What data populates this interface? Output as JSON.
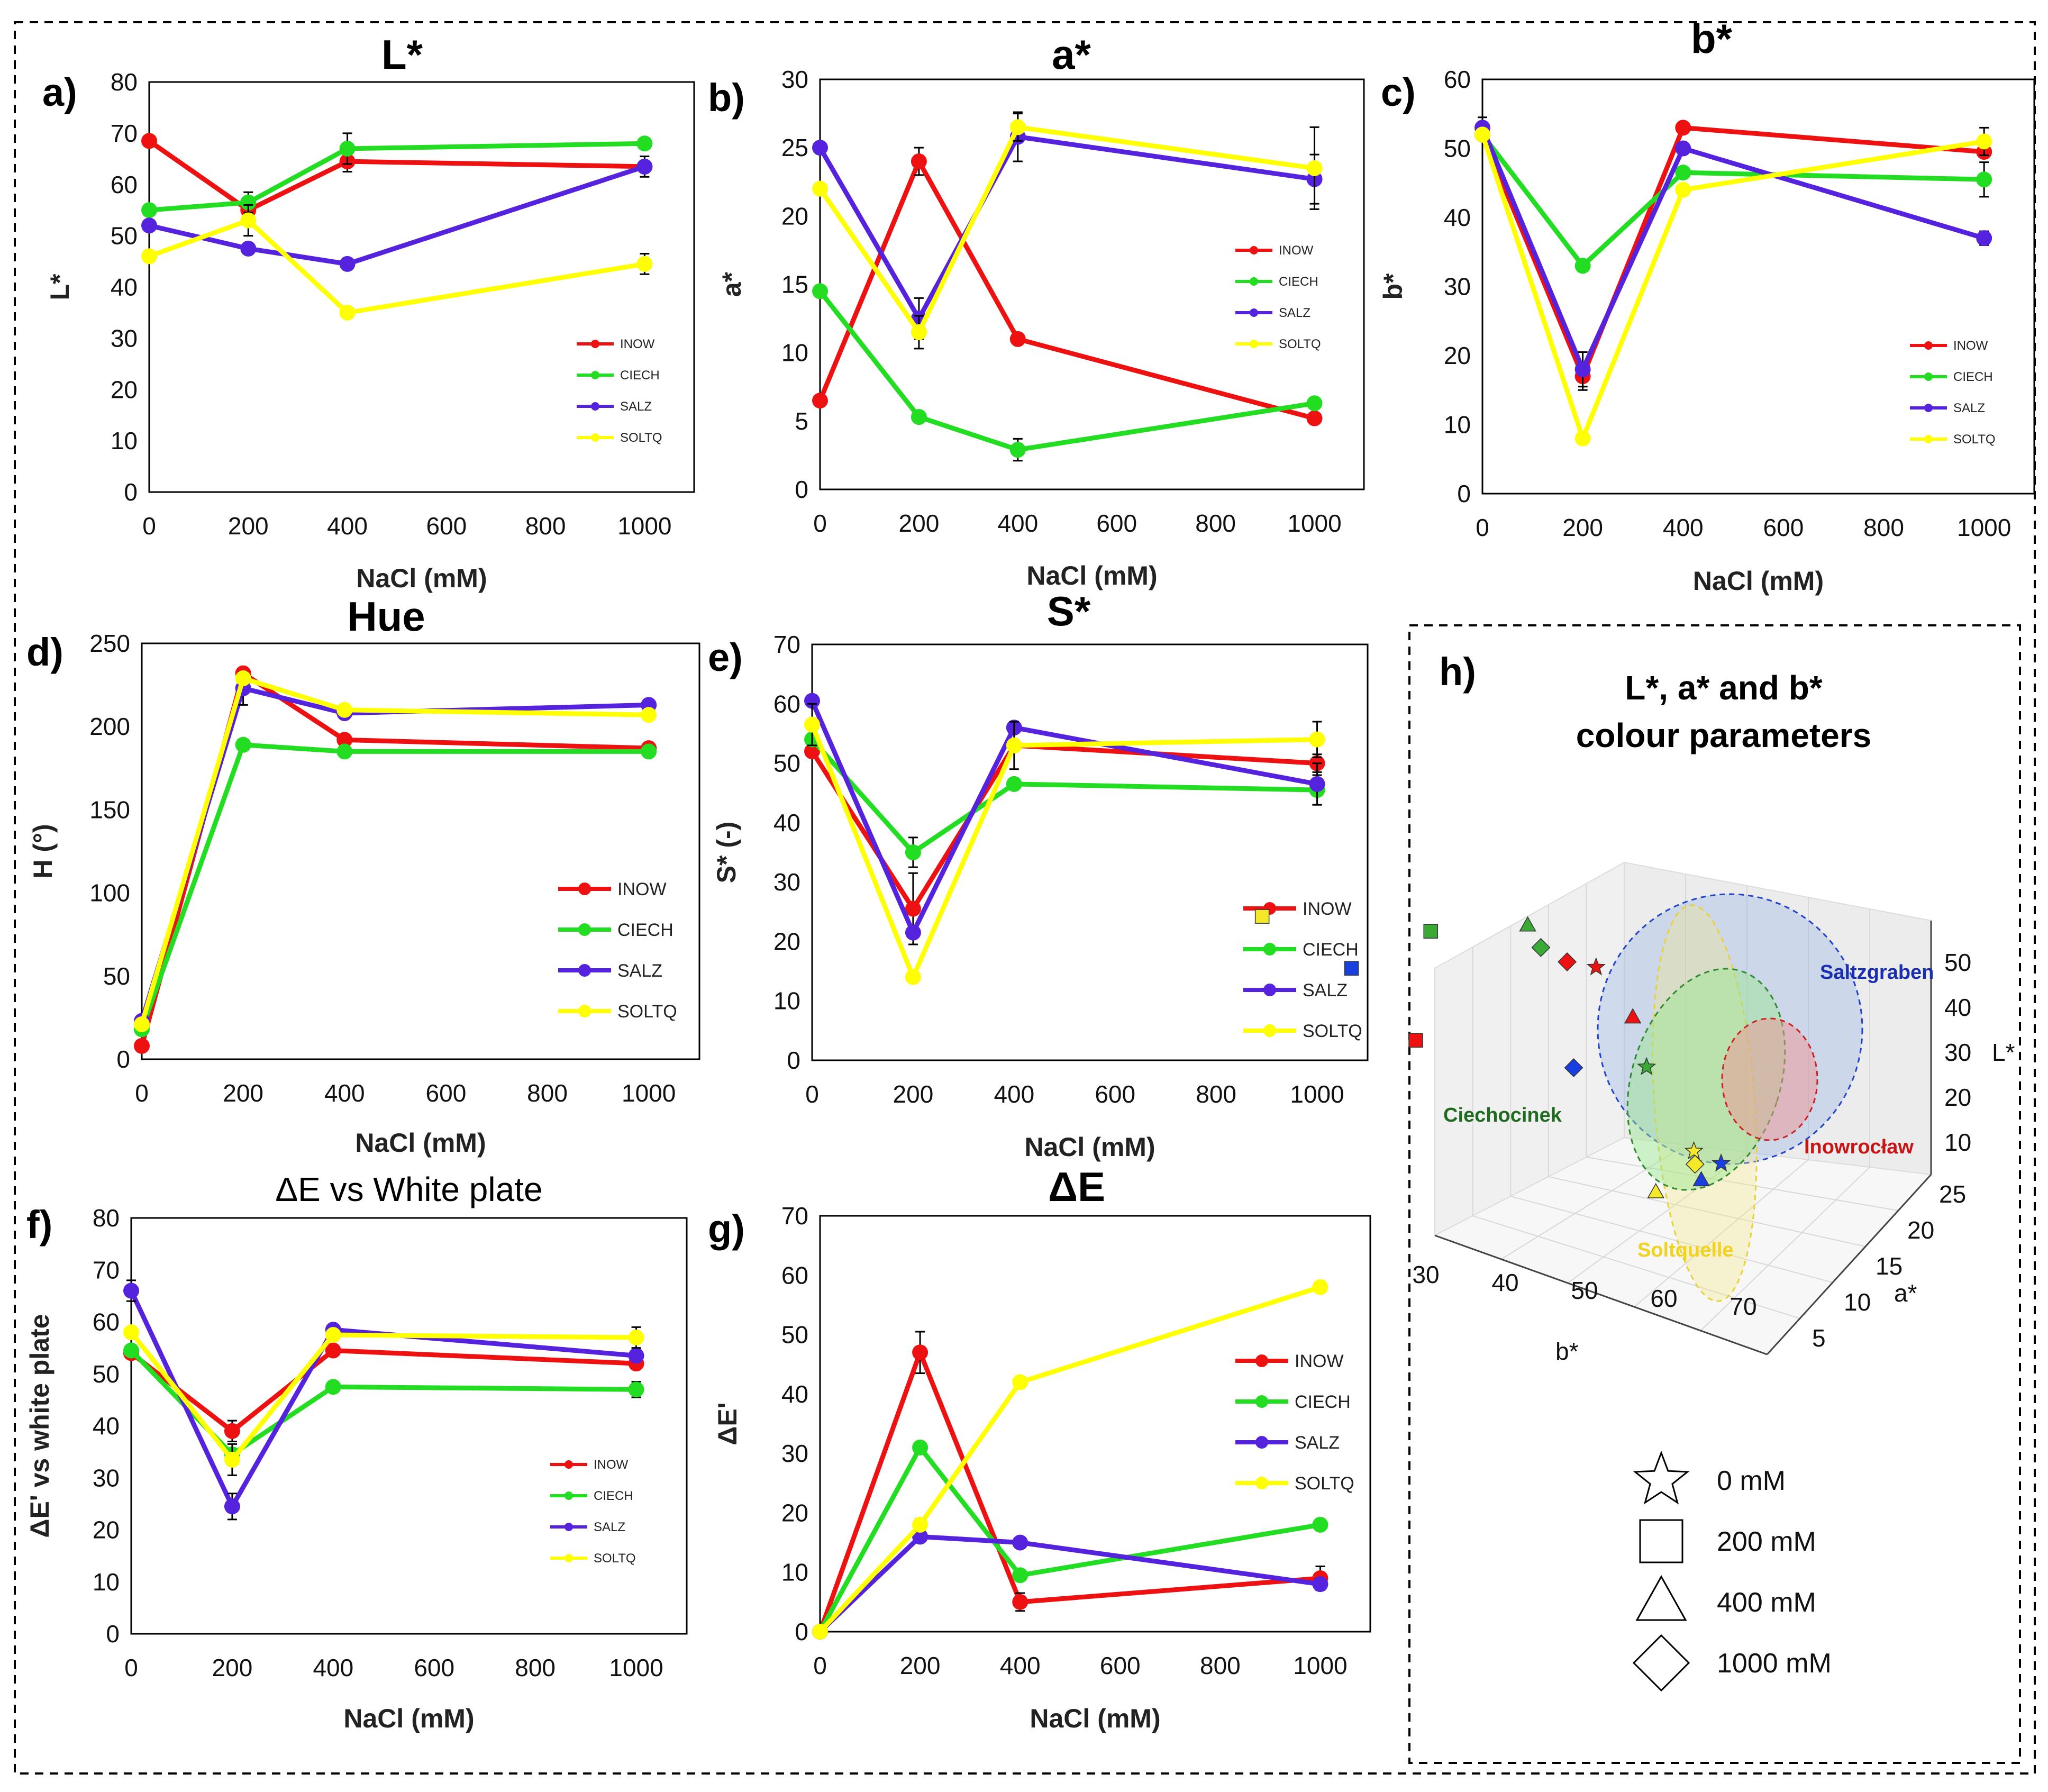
{
  "figure": {
    "legend_series": [
      "INOW",
      "CIECH",
      "SALZ",
      "SOLTQ"
    ],
    "colors": {
      "INOW": "#ee1111",
      "CIECH": "#22dd22",
      "SALZ": "#5522dd",
      "SOLTQ": "#ffff00"
    }
  },
  "chart_data": [
    {
      "id": "a",
      "letter": "a)",
      "type": "line",
      "title": "L*",
      "title_style": "bold",
      "xlabel": "NaCl (mM)",
      "ylabel": "L*",
      "x": [
        0,
        200,
        400,
        1000
      ],
      "xlim": [
        0,
        1100
      ],
      "xticks": [
        0,
        200,
        400,
        600,
        800,
        1000
      ],
      "ylim": [
        0,
        80
      ],
      "yticks": [
        0,
        10,
        20,
        30,
        40,
        50,
        60,
        70,
        80
      ],
      "legend_size": "small",
      "legend_position": "lower-right",
      "series": [
        {
          "name": "INOW",
          "values": [
            68.5,
            55,
            64.5,
            63.5
          ],
          "err": [
            0,
            2,
            2,
            0
          ]
        },
        {
          "name": "CIECH",
          "values": [
            55,
            56.5,
            67,
            68
          ],
          "err": [
            0,
            2,
            3,
            1
          ]
        },
        {
          "name": "SALZ",
          "values": [
            52,
            47.5,
            44.5,
            63.5
          ],
          "err": [
            0,
            0,
            0,
            2
          ]
        },
        {
          "name": "SOLTQ",
          "values": [
            46,
            53,
            35,
            44.5
          ],
          "err": [
            0,
            3,
            0,
            2
          ]
        }
      ]
    },
    {
      "id": "b",
      "letter": "b)",
      "type": "line",
      "title": "a*",
      "title_style": "bold",
      "xlabel": "NaCl (mM)",
      "ylabel": "a*",
      "x": [
        0,
        200,
        400,
        1000
      ],
      "xlim": [
        0,
        1100
      ],
      "xticks": [
        0,
        200,
        400,
        600,
        800,
        1000
      ],
      "ylim": [
        0,
        30
      ],
      "yticks": [
        0,
        5,
        10,
        15,
        20,
        25,
        30
      ],
      "legend_size": "small",
      "legend_position": "center-right",
      "series": [
        {
          "name": "INOW",
          "values": [
            6.5,
            24,
            11,
            5.2
          ],
          "err": [
            0,
            1,
            0,
            0
          ]
        },
        {
          "name": "CIECH",
          "values": [
            14.5,
            5.3,
            2.9,
            6.3
          ],
          "err": [
            0,
            0,
            0.8,
            0
          ]
        },
        {
          "name": "SALZ",
          "values": [
            25,
            12.5,
            25.8,
            22.7
          ],
          "err": [
            0,
            1.5,
            1.8,
            1.8
          ]
        },
        {
          "name": "SOLTQ",
          "values": [
            22,
            11.5,
            26.5,
            23.5
          ],
          "err": [
            0,
            1.2,
            1,
            3
          ]
        }
      ]
    },
    {
      "id": "c",
      "letter": "c)",
      "type": "line",
      "title": "b*",
      "title_style": "bold",
      "xlabel": "NaCl (mM)",
      "ylabel": "b*",
      "x": [
        0,
        200,
        400,
        1000
      ],
      "xlim": [
        0,
        1100
      ],
      "xticks": [
        0,
        200,
        400,
        600,
        800,
        1000
      ],
      "ylim": [
        0,
        60
      ],
      "yticks": [
        0,
        10,
        20,
        30,
        40,
        50,
        60
      ],
      "legend_size": "small",
      "legend_position": "lower-right",
      "series": [
        {
          "name": "INOW",
          "values": [
            52,
            17,
            53,
            49.5
          ],
          "err": [
            0,
            2,
            0,
            0
          ]
        },
        {
          "name": "CIECH",
          "values": [
            52,
            33,
            46.5,
            45.5
          ],
          "err": [
            0,
            0,
            0,
            2.5
          ]
        },
        {
          "name": "SALZ",
          "values": [
            53,
            18,
            50,
            37
          ],
          "err": [
            1.5,
            2.5,
            0,
            1
          ]
        },
        {
          "name": "SOLTQ",
          "values": [
            52,
            8,
            44,
            51
          ],
          "err": [
            0,
            0,
            0,
            2
          ]
        }
      ]
    },
    {
      "id": "d",
      "letter": "d)",
      "type": "line",
      "title": "Hue",
      "title_style": "bold",
      "xlabel": "NaCl (mM)",
      "ylabel": "H (°)",
      "x": [
        0,
        200,
        400,
        1000
      ],
      "xlim": [
        0,
        1100
      ],
      "xticks": [
        0,
        200,
        400,
        600,
        800,
        1000
      ],
      "ylim": [
        0,
        250
      ],
      "yticks": [
        0,
        50,
        100,
        150,
        200,
        250
      ],
      "legend_size": "large",
      "legend_position": "lower-right",
      "series": [
        {
          "name": "INOW",
          "values": [
            8,
            232,
            192,
            187
          ],
          "err": [
            0,
            0,
            0,
            0
          ]
        },
        {
          "name": "CIECH",
          "values": [
            18,
            189,
            185,
            185
          ],
          "err": [
            0,
            0,
            0,
            0
          ]
        },
        {
          "name": "SALZ",
          "values": [
            23,
            223,
            208,
            213
          ],
          "err": [
            0,
            10,
            0,
            0
          ]
        },
        {
          "name": "SOLTQ",
          "values": [
            21,
            229,
            210,
            207
          ],
          "err": [
            0,
            0,
            0,
            0
          ]
        }
      ]
    },
    {
      "id": "e",
      "letter": "e)",
      "type": "line",
      "title": "S*",
      "title_style": "bold",
      "xlabel": "NaCl (mM)",
      "ylabel": "S* (-)",
      "x": [
        0,
        200,
        400,
        1000
      ],
      "xlim": [
        0,
        1100
      ],
      "xticks": [
        0,
        200,
        400,
        600,
        800,
        1000
      ],
      "ylim": [
        0,
        70
      ],
      "yticks": [
        0,
        10,
        20,
        30,
        40,
        50,
        60,
        70
      ],
      "legend_size": "large",
      "legend_position": "lower-right",
      "series": [
        {
          "name": "INOW",
          "values": [
            52,
            25.5,
            53,
            50
          ],
          "err": [
            0,
            6,
            0,
            1.5
          ]
        },
        {
          "name": "CIECH",
          "values": [
            54,
            35,
            46.5,
            45.5
          ],
          "err": [
            0,
            2.5,
            0,
            2.5
          ]
        },
        {
          "name": "SALZ",
          "values": [
            60.5,
            21.5,
            56,
            46.5
          ],
          "err": [
            0,
            0,
            0,
            3.5
          ]
        },
        {
          "name": "SOLTQ",
          "values": [
            56.5,
            14,
            53,
            54
          ],
          "err": [
            3.5,
            0,
            4,
            3
          ]
        }
      ]
    },
    {
      "id": "f",
      "letter": "f)",
      "type": "line",
      "title": "ΔE vs White plate",
      "title_style": "normal",
      "xlabel": "NaCl (mM)",
      "ylabel": "ΔE' vs white plate",
      "x": [
        0,
        200,
        400,
        1000
      ],
      "xlim": [
        0,
        1100
      ],
      "xticks": [
        0,
        200,
        400,
        600,
        800,
        1000
      ],
      "ylim": [
        0,
        80
      ],
      "yticks": [
        0,
        10,
        20,
        30,
        40,
        50,
        60,
        70,
        80
      ],
      "legend_size": "small",
      "legend_position": "lower-right",
      "series": [
        {
          "name": "INOW",
          "values": [
            54,
            39,
            54.5,
            52
          ],
          "err": [
            0,
            2,
            0,
            0
          ]
        },
        {
          "name": "CIECH",
          "values": [
            54.5,
            34.5,
            47.5,
            47
          ],
          "err": [
            0,
            0,
            0,
            1.5
          ]
        },
        {
          "name": "SALZ",
          "values": [
            66,
            24.5,
            58.5,
            53.5
          ],
          "err": [
            2,
            2.5,
            0,
            0
          ]
        },
        {
          "name": "SOLTQ",
          "values": [
            58,
            33.5,
            57.5,
            57
          ],
          "err": [
            0,
            3,
            0,
            2
          ]
        }
      ]
    },
    {
      "id": "g",
      "letter": "g)",
      "type": "line",
      "title": "ΔE",
      "title_style": "bold",
      "xlabel": "NaCl (mM)",
      "ylabel": "ΔE'",
      "x": [
        0,
        200,
        400,
        1000
      ],
      "xlim": [
        0,
        1100
      ],
      "xticks": [
        0,
        200,
        400,
        600,
        800,
        1000
      ],
      "ylim": [
        0,
        70
      ],
      "yticks": [
        0,
        10,
        20,
        30,
        40,
        50,
        60,
        70
      ],
      "legend_size": "large",
      "legend_position": "center-right",
      "series": [
        {
          "name": "INOW",
          "values": [
            0,
            47,
            5,
            9
          ],
          "err": [
            0,
            3.5,
            1.5,
            2
          ]
        },
        {
          "name": "CIECH",
          "values": [
            0,
            31,
            9.5,
            18
          ],
          "err": [
            0,
            0,
            0,
            0
          ]
        },
        {
          "name": "SALZ",
          "values": [
            0,
            16,
            15,
            8
          ],
          "err": [
            0,
            0,
            0,
            0
          ]
        },
        {
          "name": "SOLTQ",
          "values": [
            0,
            18,
            42,
            58
          ],
          "err": [
            0,
            1,
            0,
            0
          ]
        }
      ]
    },
    {
      "id": "h",
      "letter": "h)",
      "type": "scatter",
      "title_lines": [
        "L*, a* and b*",
        "colour parameters"
      ],
      "axis_labels": {
        "L": "L*",
        "a": "a*",
        "b": "b*"
      },
      "L_ticks": [
        10,
        20,
        30,
        40,
        50
      ],
      "a_ticks": [
        5,
        10,
        15,
        20,
        25
      ],
      "b_ticks": [
        30,
        40,
        50,
        60,
        70
      ],
      "cluster_labels": {
        "SALZ": "Saltzgraben",
        "CIECH": "Ciechocinek",
        "INOW": "Inowrocław",
        "SOLTQ": "Soltquelle"
      },
      "cluster_colors": {
        "SALZ": "#1a2fb0",
        "CIECH": "#1f6b1f",
        "INOW": "#c81414",
        "SOLTQ": "#f2d21c"
      },
      "marker_colors": {
        "INOW": "#ee1111",
        "CIECH": "#3aaa35",
        "SALZ": "#1a3fe0",
        "SOLTQ": "#f5e82a"
      },
      "points": [
        {
          "series": "SALZ",
          "conc": 0,
          "b": 53,
          "a": 25,
          "L": 52
        },
        {
          "series": "SALZ",
          "conc": 200,
          "b": 18,
          "a": 12.5,
          "L": 47.5
        },
        {
          "series": "SALZ",
          "conc": 400,
          "b": 50,
          "a": 25.8,
          "L": 44.5
        },
        {
          "series": "SALZ",
          "conc": 1000,
          "b": 37,
          "a": 22.7,
          "L": 63.5
        },
        {
          "series": "SOLTQ",
          "conc": 0,
          "b": 52,
          "a": 22,
          "L": 46
        },
        {
          "series": "SOLTQ",
          "conc": 200,
          "b": 8,
          "a": 11.5,
          "L": 53
        },
        {
          "series": "SOLTQ",
          "conc": 400,
          "b": 44,
          "a": 26.5,
          "L": 35
        },
        {
          "series": "SOLTQ",
          "conc": 1000,
          "b": 51,
          "a": 23.5,
          "L": 44.5
        },
        {
          "series": "CIECH",
          "conc": 0,
          "b": 52,
          "a": 14.5,
          "L": 55
        },
        {
          "series": "CIECH",
          "conc": 200,
          "b": 33,
          "a": 5.3,
          "L": 56.5
        },
        {
          "series": "CIECH",
          "conc": 400,
          "b": 46.5,
          "a": 2.9,
          "L": 67
        },
        {
          "series": "CIECH",
          "conc": 1000,
          "b": 45.5,
          "a": 6.3,
          "L": 68
        },
        {
          "series": "INOW",
          "conc": 0,
          "b": 52,
          "a": 6.5,
          "L": 68.5
        },
        {
          "series": "INOW",
          "conc": 200,
          "b": 17,
          "a": 24,
          "L": 55
        },
        {
          "series": "INOW",
          "conc": 400,
          "b": 53,
          "a": 11,
          "L": 64.5
        },
        {
          "series": "INOW",
          "conc": 1000,
          "b": 49.5,
          "a": 5.2,
          "L": 63.5
        }
      ],
      "marker_legend": [
        {
          "shape": "star",
          "label": "0 mM"
        },
        {
          "shape": "square",
          "label": "200 mM"
        },
        {
          "shape": "triangle",
          "label": "400 mM"
        },
        {
          "shape": "diamond",
          "label": "1000 mM"
        }
      ]
    }
  ]
}
